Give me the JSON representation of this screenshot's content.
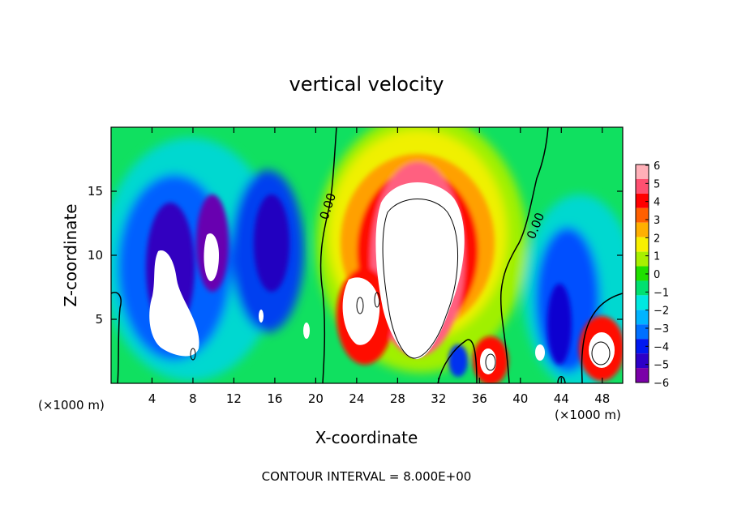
{
  "chart_data": {
    "type": "heatmap",
    "title": "vertical velocity",
    "xlabel": "X-coordinate",
    "ylabel": "Z-coordinate",
    "x_unit_left": "(×1000 m)",
    "x_unit_right": "(×1000 m)",
    "xlim": [
      0,
      50
    ],
    "ylim": [
      0,
      20
    ],
    "x_ticks": [
      4,
      8,
      12,
      16,
      20,
      24,
      28,
      32,
      36,
      40,
      44,
      48
    ],
    "y_ticks": [
      5,
      10,
      15
    ],
    "contour_labels": [
      "0.00",
      "0.00"
    ],
    "footer": "CONTOUR INTERVAL = 8.000E+00",
    "colorbar": {
      "levels": [
        -6,
        -5,
        -4,
        -3,
        -2,
        -1,
        0,
        1,
        2,
        3,
        4,
        5,
        6
      ],
      "labels": [
        "6",
        "5",
        "4",
        "3",
        "2",
        "1",
        "0",
        "−1",
        "−2",
        "−3",
        "−4",
        "−5",
        "−6"
      ],
      "colors": [
        "#7a00a8",
        "#2d00c8",
        "#0018f0",
        "#0070ff",
        "#00b4ff",
        "#00e8e0",
        "#00e070",
        "#20e000",
        "#a8f000",
        "#f8f000",
        "#ffb000",
        "#ff6000",
        "#ff0000",
        "#ff5070",
        "#ffb0b8"
      ]
    },
    "features": [
      {
        "name": "updraft core",
        "x": 30,
        "z": 10,
        "value": 10
      },
      {
        "name": "right updraft",
        "x": 37.5,
        "z": 2,
        "value": 7
      },
      {
        "name": "right edge updraft",
        "x": 48,
        "z": 2.5,
        "value": 8
      },
      {
        "name": "downdraft left",
        "x": 6,
        "z": 5,
        "value": -8
      },
      {
        "name": "downdraft column",
        "x": 10,
        "z": 12,
        "value": -7
      },
      {
        "name": "downdraft right",
        "x": 43,
        "z": 5,
        "value": -5
      }
    ]
  }
}
